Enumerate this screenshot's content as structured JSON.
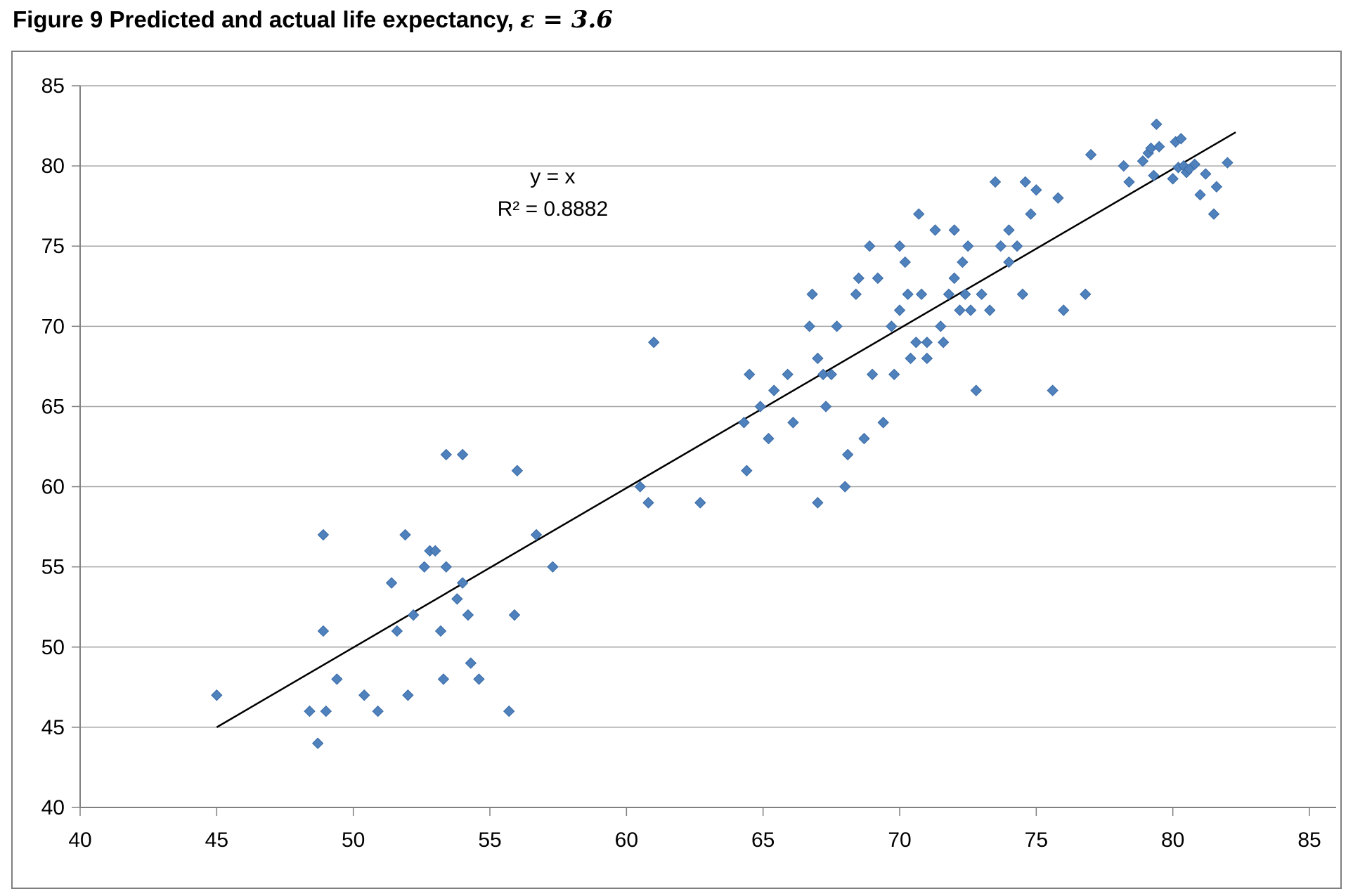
{
  "figure": {
    "title_prefix": "Figure 9 Predicted and actual life expectancy, ",
    "title_math": "ε = 3.6"
  },
  "chart_data": {
    "type": "scatter",
    "title": "Figure 9 Predicted and actual life expectancy, ε = 3.6",
    "xlabel": "",
    "ylabel": "",
    "xlim": [
      40,
      85
    ],
    "ylim": [
      40,
      85
    ],
    "x_ticks": [
      40,
      45,
      50,
      55,
      60,
      65,
      70,
      75,
      80,
      85
    ],
    "y_ticks": [
      40,
      45,
      50,
      55,
      60,
      65,
      70,
      75,
      80,
      85
    ],
    "grid": "horizontal",
    "gridline_color": "#a6a6a6",
    "axis_color": "#808080",
    "legend_position": "none",
    "annotation": {
      "line1": "y = x",
      "line2": "R² = 0.8882",
      "x": 57.3,
      "y1": 78.9,
      "y2": 76.9
    },
    "trendline": {
      "x1": 45,
      "y1": 45,
      "x2": 82.3,
      "y2": 82.1,
      "color": "#000000",
      "width": 2.5
    },
    "marker": {
      "shape": "diamond",
      "color": "#4f81bd",
      "stroke": "#3a6ba5",
      "half_size": 7.5
    },
    "points": [
      [
        45,
        47
      ],
      [
        48.4,
        46
      ],
      [
        48.7,
        44
      ],
      [
        48.9,
        57
      ],
      [
        48.9,
        51
      ],
      [
        49,
        46
      ],
      [
        49.4,
        48
      ],
      [
        50.4,
        47
      ],
      [
        50.9,
        46
      ],
      [
        51.4,
        54
      ],
      [
        51.6,
        51
      ],
      [
        51.9,
        57
      ],
      [
        52,
        47
      ],
      [
        52.2,
        52
      ],
      [
        52.6,
        55
      ],
      [
        52.8,
        56
      ],
      [
        53,
        56
      ],
      [
        53.2,
        51
      ],
      [
        53.3,
        48
      ],
      [
        53.4,
        55
      ],
      [
        53.4,
        62
      ],
      [
        53.8,
        53
      ],
      [
        54,
        54
      ],
      [
        54,
        62
      ],
      [
        54.2,
        52
      ],
      [
        54.3,
        49
      ],
      [
        54.6,
        48
      ],
      [
        55.7,
        46
      ],
      [
        55.9,
        52
      ],
      [
        56,
        61
      ],
      [
        56.7,
        57
      ],
      [
        57.3,
        55
      ],
      [
        60.5,
        60
      ],
      [
        60.8,
        59
      ],
      [
        61,
        69
      ],
      [
        62.7,
        59
      ],
      [
        64.3,
        64
      ],
      [
        64.4,
        61
      ],
      [
        64.5,
        67
      ],
      [
        64.9,
        65
      ],
      [
        65.2,
        63
      ],
      [
        65.4,
        66
      ],
      [
        65.9,
        67
      ],
      [
        66.1,
        64
      ],
      [
        66.7,
        70
      ],
      [
        66.8,
        72
      ],
      [
        67,
        59
      ],
      [
        67,
        68
      ],
      [
        67.2,
        67
      ],
      [
        67.3,
        65
      ],
      [
        67.5,
        67
      ],
      [
        67.7,
        70
      ],
      [
        68,
        60
      ],
      [
        68.1,
        62
      ],
      [
        68.4,
        72
      ],
      [
        68.5,
        73
      ],
      [
        68.7,
        63
      ],
      [
        68.9,
        75
      ],
      [
        69,
        67
      ],
      [
        69.2,
        73
      ],
      [
        69.4,
        64
      ],
      [
        69.7,
        70
      ],
      [
        69.8,
        67
      ],
      [
        70,
        71
      ],
      [
        70,
        75
      ],
      [
        70.2,
        74
      ],
      [
        70.3,
        72
      ],
      [
        70.4,
        68
      ],
      [
        70.6,
        69
      ],
      [
        70.7,
        77
      ],
      [
        70.8,
        72
      ],
      [
        71,
        68
      ],
      [
        71,
        69
      ],
      [
        71.3,
        76
      ],
      [
        71.5,
        70
      ],
      [
        71.6,
        69
      ],
      [
        71.8,
        72
      ],
      [
        72,
        73
      ],
      [
        72,
        76
      ],
      [
        72.2,
        71
      ],
      [
        72.3,
        74
      ],
      [
        72.4,
        72
      ],
      [
        72.5,
        75
      ],
      [
        72.6,
        71
      ],
      [
        72.8,
        66
      ],
      [
        73,
        72
      ],
      [
        73.3,
        71
      ],
      [
        73.5,
        79
      ],
      [
        73.7,
        75
      ],
      [
        74,
        74
      ],
      [
        74,
        76
      ],
      [
        74.3,
        75
      ],
      [
        74.5,
        72
      ],
      [
        74.6,
        79
      ],
      [
        74.8,
        77
      ],
      [
        75,
        78.5
      ],
      [
        75.6,
        66
      ],
      [
        75.8,
        78
      ],
      [
        76,
        71
      ],
      [
        76.8,
        72
      ],
      [
        77,
        80.7
      ],
      [
        78.2,
        80
      ],
      [
        78.4,
        79
      ],
      [
        78.9,
        80.3
      ],
      [
        79.1,
        80.8
      ],
      [
        79.2,
        81.1
      ],
      [
        79.3,
        79.4
      ],
      [
        79.4,
        82.6
      ],
      [
        79.5,
        81.2
      ],
      [
        80,
        79.2
      ],
      [
        80.1,
        81.5
      ],
      [
        80.2,
        79.9
      ],
      [
        80.3,
        81.7
      ],
      [
        80.4,
        80
      ],
      [
        80.5,
        79.6
      ],
      [
        80.6,
        79.8
      ],
      [
        80.8,
        80.1
      ],
      [
        81,
        78.2
      ],
      [
        81.2,
        79.5
      ],
      [
        81.5,
        77
      ],
      [
        81.6,
        78.7
      ],
      [
        82,
        80.2
      ]
    ]
  }
}
